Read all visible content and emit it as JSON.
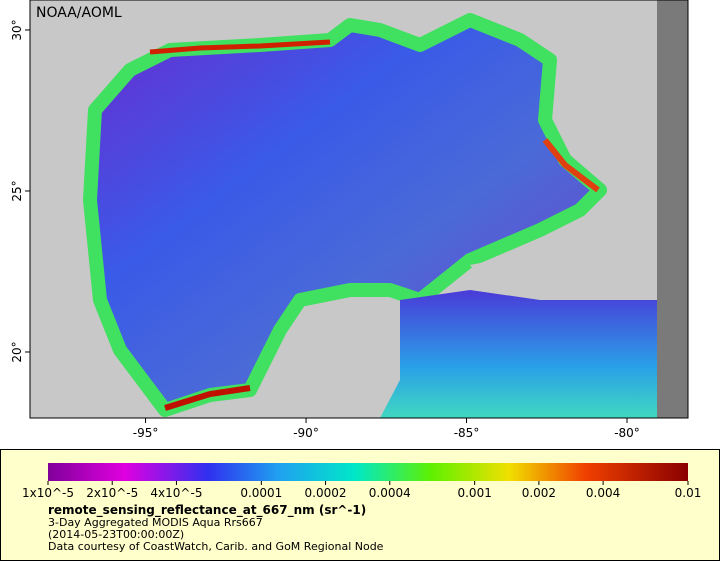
{
  "map": {
    "credit": "NOAA/AOML",
    "xlim": [
      -98.6,
      -78.1
    ],
    "ylim": [
      17.95,
      30.93
    ],
    "xticks": [
      {
        "value": -95,
        "label": "-95°"
      },
      {
        "value": -90,
        "label": "-90°"
      },
      {
        "value": -85,
        "label": "-85°"
      },
      {
        "value": -80,
        "label": "-80°"
      }
    ],
    "yticks": [
      {
        "value": 30,
        "label": "30°"
      },
      {
        "value": 25,
        "label": "25°"
      },
      {
        "value": 20,
        "label": "20°"
      }
    ]
  },
  "legend": {
    "colorbar_range": [
      1e-05,
      0.01
    ],
    "ticks": [
      {
        "value": 1e-05,
        "label": "1x10^-5"
      },
      {
        "value": 2e-05,
        "label": "2x10^-5"
      },
      {
        "value": 4e-05,
        "label": "4x10^-5"
      },
      0.0001,
      0.0002,
      0.0004,
      0.001,
      0.002,
      0.004,
      0.01
    ],
    "title": "remote_sensing_reflectance_at_667_nm (sr^-1)",
    "lines": [
      "3-Day Aggregated MODIS Aqua Rrs667",
      "(2014-05-23T00:00:00Z)",
      "Data courtesy of CoastWatch, Carib. and GoM Regional Node"
    ]
  }
}
